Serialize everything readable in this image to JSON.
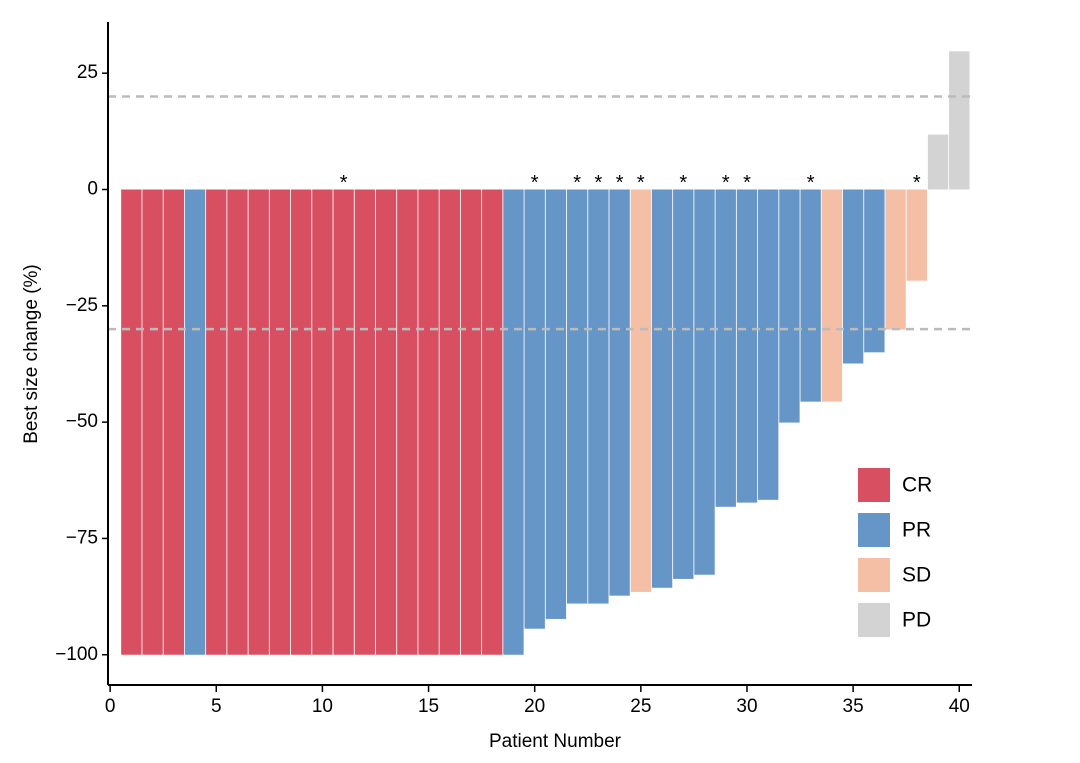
{
  "chart_data": {
    "type": "bar",
    "x_label": "Patient Number",
    "y_label": "Best size change (%)",
    "xlim": [
      -0.1,
      40.6
    ],
    "xticks": [
      0,
      5,
      10,
      15,
      20,
      25,
      30,
      35,
      40
    ],
    "ylim": [
      -106.5,
      36
    ],
    "yticks": [
      {
        "value": -100,
        "label": "−100"
      },
      {
        "value": -75,
        "label": "−75"
      },
      {
        "value": -50,
        "label": "−50"
      },
      {
        "value": -25,
        "label": "−25"
      },
      0,
      25
    ],
    "reference_lines": [
      20,
      -30
    ],
    "legend": "bottom-right",
    "series": [
      {
        "name": "CR",
        "color": "#d94f62",
        "x": [
          1,
          2,
          3,
          5,
          6,
          7,
          8,
          9,
          10,
          11,
          12,
          13,
          14,
          15,
          16,
          17,
          18
        ],
        "values": [
          -100,
          -100,
          -100,
          -100,
          -100,
          -100,
          -100,
          -100,
          -100,
          -100,
          -100,
          -100,
          -100,
          -100,
          -100,
          -100,
          -100
        ]
      },
      {
        "name": "PR",
        "color": "#6596c7",
        "x": [
          4,
          19,
          20,
          21,
          22,
          23,
          24,
          26,
          27,
          28,
          29,
          30,
          31,
          32,
          33,
          35,
          36
        ],
        "values": [
          -100,
          -100,
          -94.4,
          -92.3,
          -89,
          -89,
          -87.3,
          -85.6,
          -83.7,
          -82.8,
          -68.2,
          -67.3,
          -66.7,
          -50.1,
          -45.6,
          -37.4,
          -35
        ]
      },
      {
        "name": "SD",
        "color": "#f5bfa5",
        "x": [
          25,
          34,
          37,
          38
        ],
        "values": [
          -86.5,
          -45.6,
          -30.1,
          -19.6
        ]
      },
      {
        "name": "PD",
        "color": "#d3d3d3",
        "x": [
          39,
          40
        ],
        "values": [
          11.8,
          29.7
        ]
      }
    ],
    "annotations": [
      {
        "x": 11,
        "text": "*"
      },
      {
        "x": 20,
        "text": "*"
      },
      {
        "x": 22,
        "text": "*"
      },
      {
        "x": 23,
        "text": "*"
      },
      {
        "x": 24,
        "text": "*"
      },
      {
        "x": 25,
        "text": "*"
      },
      {
        "x": 27,
        "text": "*"
      },
      {
        "x": 29,
        "text": "*"
      },
      {
        "x": 30,
        "text": "*"
      },
      {
        "x": 33,
        "text": "*"
      },
      {
        "x": 38,
        "text": "*"
      }
    ]
  }
}
